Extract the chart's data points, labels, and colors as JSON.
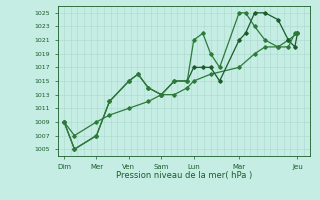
{
  "xlabel": "Pression niveau de la mer( hPa )",
  "ylim": [
    1004,
    1026
  ],
  "yticks": [
    1005,
    1007,
    1009,
    1011,
    1013,
    1015,
    1017,
    1019,
    1021,
    1023,
    1025
  ],
  "bg_color": "#c5ede3",
  "grid_color": "#aad8cc",
  "line_color_dark": "#1a5c2a",
  "line_color_mid": "#2d7a3a",
  "xtick_labels": [
    "Dim",
    "Mer",
    "Ven",
    "Sam",
    "Lun",
    "Mar",
    "Jeu"
  ],
  "xtick_pos": [
    0,
    2.5,
    5,
    7.5,
    10,
    13.5,
    18
  ],
  "xlim": [
    -0.5,
    19
  ],
  "s1_x": [
    0,
    0.8,
    2.5,
    3.5,
    5,
    5.7,
    6.5,
    7.5,
    8.5,
    9.5,
    10,
    10.7,
    11.3,
    12,
    13.5,
    14,
    14.7,
    15.5,
    16.5,
    17.3,
    17.8,
    18
  ],
  "s1_y": [
    1009,
    1005,
    1007,
    1012,
    1015,
    1016,
    1014,
    1013,
    1015,
    1015,
    1021,
    1022,
    1019,
    1017,
    1025,
    1025,
    1023,
    1021,
    1020,
    1020,
    1022,
    1022
  ],
  "s2_x": [
    0,
    0.8,
    2.5,
    3.5,
    5,
    5.7,
    6.5,
    7.5,
    8.5,
    9.5,
    10,
    10.7,
    11.3,
    12,
    13.5,
    14,
    14.7,
    15.5,
    16.5,
    17.3,
    17.8,
    18
  ],
  "s2_y": [
    1009,
    1005,
    1007,
    1012,
    1015,
    1016,
    1014,
    1013,
    1015,
    1015,
    1017,
    1017,
    1017,
    1015,
    1021,
    1022,
    1025,
    1025,
    1024,
    1021,
    1020,
    1022
  ],
  "s3_x": [
    0,
    0.8,
    2.5,
    3.5,
    5,
    6.5,
    7.5,
    8.5,
    9.5,
    10,
    11.3,
    13.5,
    14.7,
    15.5,
    16.5,
    17.3,
    18
  ],
  "s3_y": [
    1009,
    1007,
    1009,
    1010,
    1011,
    1012,
    1013,
    1013,
    1014,
    1015,
    1016,
    1017,
    1019,
    1020,
    1020,
    1021,
    1022
  ]
}
